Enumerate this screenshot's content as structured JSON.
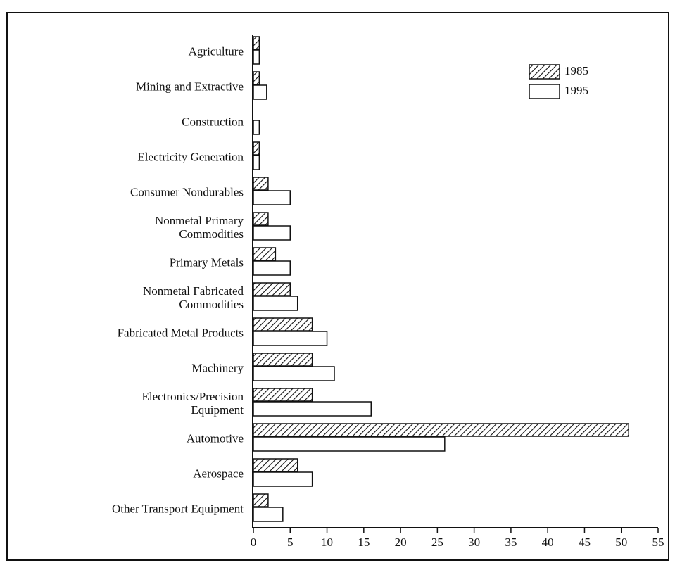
{
  "chart_data": {
    "type": "grouped-hbar",
    "categories": [
      "Agriculture",
      "Mining and Extractive",
      "Construction",
      "Electricity Generation",
      "Consumer Nondurables",
      "Nonmetal Primary\nCommodities",
      "Primary Metals",
      "Nonmetal Fabricated\nCommodities",
      "Fabricated Metal Products",
      "Machinery",
      "Electronics/Precision\nEquipment",
      "Automotive",
      "Aerospace",
      "Other Transport Equipment"
    ],
    "series": [
      {
        "name": "1985",
        "color": "hatch",
        "values": [
          0.8,
          0.8,
          0,
          0.8,
          2,
          2,
          3,
          5,
          8,
          8,
          8,
          51,
          6,
          2
        ]
      },
      {
        "name": "1995",
        "color": "#ffffff",
        "values": [
          0.8,
          1.8,
          0.8,
          0.8,
          5,
          5,
          5,
          6,
          10,
          11,
          16,
          26,
          8,
          4
        ]
      }
    ],
    "xlim": [
      0,
      55
    ],
    "xticks": [
      0,
      5,
      10,
      15,
      20,
      25,
      30,
      35,
      40,
      45,
      50,
      55
    ],
    "legend": "upper right",
    "grid": false
  }
}
